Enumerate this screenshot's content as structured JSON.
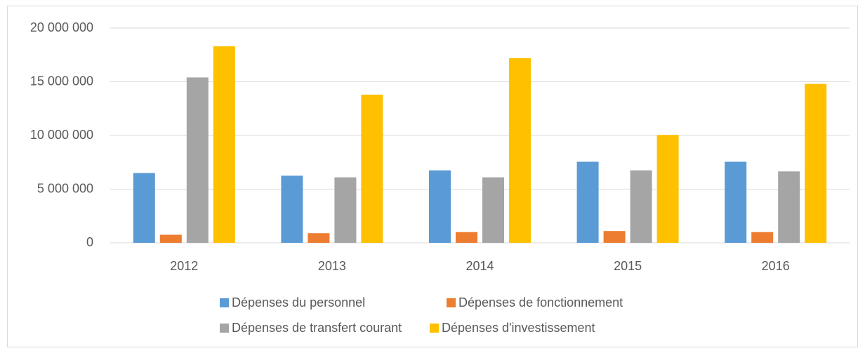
{
  "chart_data": {
    "type": "bar",
    "categories": [
      "2012",
      "2013",
      "2014",
      "2015",
      "2016"
    ],
    "series": [
      {
        "name": "Dépenses du personnel",
        "color": "#5b9bd5",
        "values": [
          6500000,
          6250000,
          6750000,
          7550000,
          7550000
        ]
      },
      {
        "name": "Dépenses de fonctionnement",
        "color": "#ed7d31",
        "values": [
          750000,
          900000,
          1000000,
          1100000,
          1000000
        ]
      },
      {
        "name": "Dépenses de transfert courant",
        "color": "#a5a5a5",
        "values": [
          15400000,
          6100000,
          6100000,
          6750000,
          6650000
        ]
      },
      {
        "name": "Dépenses d'investissement",
        "color": "#ffc000",
        "values": [
          18300000,
          13800000,
          17200000,
          10050000,
          14800000
        ]
      }
    ],
    "ylim": [
      0,
      20000000
    ],
    "yticks": [
      0,
      {
        "value": 5000000,
        "label": "5 000 000"
      },
      {
        "value": 10000000,
        "label": "10 000 000"
      },
      {
        "value": 15000000,
        "label": "15 000 000"
      },
      {
        "value": 20000000,
        "label": "20 000 000"
      }
    ],
    "grid": true,
    "legend": "bottom"
  }
}
